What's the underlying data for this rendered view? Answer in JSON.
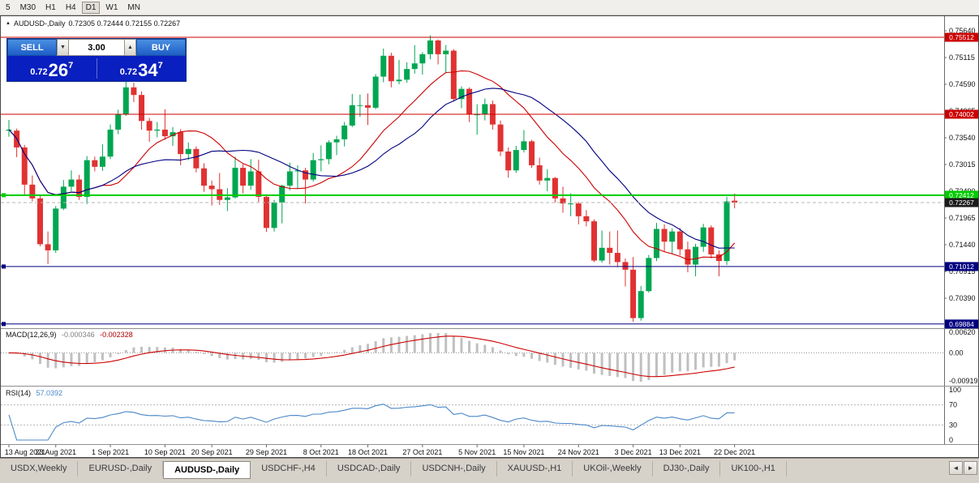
{
  "icons": {
    "chart_arrow": "▲",
    "volume_down": "▼",
    "volume_up": "▲",
    "tab_scroll_left": "◄",
    "tab_scroll_right": "►"
  },
  "toolbar": {
    "periods": [
      {
        "label": "5",
        "active": false
      },
      {
        "label": "M30",
        "active": false
      },
      {
        "label": "H1",
        "active": false
      },
      {
        "label": "H4",
        "active": false
      },
      {
        "label": "D1",
        "active": true
      },
      {
        "label": "W1",
        "active": false
      },
      {
        "label": "MN",
        "active": false
      }
    ]
  },
  "chart": {
    "symbol": "AUDUSD-,Daily",
    "ohlc": "0.72305 0.72444 0.72155 0.72267"
  },
  "trade_panel": {
    "sell_label": "SELL",
    "buy_label": "BUY",
    "volume": "3.00",
    "bid": {
      "prefix": "0.72",
      "big": "26",
      "sup": "7"
    },
    "ask": {
      "prefix": "0.72",
      "big": "34",
      "sup": "7"
    }
  },
  "chart_data": {
    "type": "candlestick",
    "symbol": "AUDUSD-,Daily",
    "title_ohlc": {
      "open": 0.72305,
      "high": 0.72444,
      "low": 0.72155,
      "close": 0.72267
    },
    "up_color": "#00A651",
    "down_color": "#E03232",
    "y_axis_labels": [
      "0.75640",
      "0.75115",
      "0.74590",
      "0.74065",
      "0.73540",
      "0.73015",
      "0.72490",
      "0.71965",
      "0.71440",
      "0.70915",
      "0.70390",
      "0.69865"
    ],
    "x_labels": [
      {
        "i": 0,
        "t": "13 Aug 2021"
      },
      {
        "i": 6,
        "t": "23 Aug 2021"
      },
      {
        "i": 13,
        "t": "1 Sep 2021"
      },
      {
        "i": 20,
        "t": "10 Sep 2021"
      },
      {
        "i": 26,
        "t": "20 Sep 2021"
      },
      {
        "i": 33,
        "t": "29 Sep 2021"
      },
      {
        "i": 40,
        "t": "8 Oct 2021"
      },
      {
        "i": 46,
        "t": "18 Oct 2021"
      },
      {
        "i": 53,
        "t": "27 Oct 2021"
      },
      {
        "i": 60,
        "t": "5 Nov 2021"
      },
      {
        "i": 66,
        "t": "15 Nov 2021"
      },
      {
        "i": 73,
        "t": "24 Nov 2021"
      },
      {
        "i": 80,
        "t": "3 Dec 2021"
      },
      {
        "i": 86,
        "t": "13 Dec 2021"
      },
      {
        "i": 93,
        "t": "22 Dec 2021"
      }
    ],
    "candles": [
      [
        0.7368,
        0.7389,
        0.7356,
        0.737
      ],
      [
        0.7368,
        0.7372,
        0.7316,
        0.7335
      ],
      [
        0.7335,
        0.734,
        0.724,
        0.7262
      ],
      [
        0.7262,
        0.728,
        0.7229,
        0.7235
      ],
      [
        0.7235,
        0.7241,
        0.7141,
        0.7145
      ],
      [
        0.7145,
        0.717,
        0.7106,
        0.7133
      ],
      [
        0.7133,
        0.722,
        0.7128,
        0.7215
      ],
      [
        0.7215,
        0.7271,
        0.7212,
        0.7258
      ],
      [
        0.7258,
        0.729,
        0.7249,
        0.7272
      ],
      [
        0.7272,
        0.7281,
        0.7232,
        0.7238
      ],
      [
        0.7238,
        0.7318,
        0.7224,
        0.731
      ],
      [
        0.731,
        0.7317,
        0.7288,
        0.7297
      ],
      [
        0.7297,
        0.7341,
        0.7289,
        0.7317
      ],
      [
        0.7317,
        0.738,
        0.7312,
        0.737
      ],
      [
        0.737,
        0.7409,
        0.7361,
        0.74
      ],
      [
        0.74,
        0.7478,
        0.7397,
        0.7453
      ],
      [
        0.7453,
        0.7462,
        0.7424,
        0.7438
      ],
      [
        0.7438,
        0.7445,
        0.737,
        0.7387
      ],
      [
        0.7387,
        0.7393,
        0.7346,
        0.7368
      ],
      [
        0.7368,
        0.7385,
        0.7355,
        0.737
      ],
      [
        0.737,
        0.741,
        0.735,
        0.7357
      ],
      [
        0.7357,
        0.7375,
        0.7338,
        0.7365
      ],
      [
        0.7365,
        0.7371,
        0.73,
        0.7322
      ],
      [
        0.7322,
        0.7345,
        0.731,
        0.7332
      ],
      [
        0.7332,
        0.7337,
        0.7286,
        0.7294
      ],
      [
        0.7294,
        0.7304,
        0.7248,
        0.726
      ],
      [
        0.726,
        0.727,
        0.7221,
        0.7253
      ],
      [
        0.7253,
        0.7285,
        0.7222,
        0.7232
      ],
      [
        0.7232,
        0.7255,
        0.721,
        0.7237
      ],
      [
        0.7237,
        0.7317,
        0.7235,
        0.7295
      ],
      [
        0.7295,
        0.7302,
        0.7245,
        0.726
      ],
      [
        0.726,
        0.7312,
        0.7252,
        0.7288
      ],
      [
        0.7288,
        0.7311,
        0.7228,
        0.7238
      ],
      [
        0.7238,
        0.7242,
        0.7169,
        0.7177
      ],
      [
        0.7177,
        0.7232,
        0.717,
        0.7227
      ],
      [
        0.7227,
        0.7262,
        0.7186,
        0.726
      ],
      [
        0.726,
        0.7305,
        0.7251,
        0.7288
      ],
      [
        0.7288,
        0.73,
        0.7255,
        0.729
      ],
      [
        0.729,
        0.7295,
        0.7225,
        0.7272
      ],
      [
        0.7272,
        0.7324,
        0.7268,
        0.731
      ],
      [
        0.731,
        0.7339,
        0.7288,
        0.7312
      ],
      [
        0.7312,
        0.7349,
        0.7302,
        0.7345
      ],
      [
        0.7345,
        0.7358,
        0.732,
        0.7351
      ],
      [
        0.7351,
        0.7385,
        0.7337,
        0.7378
      ],
      [
        0.7378,
        0.744,
        0.7375,
        0.7418
      ],
      [
        0.7418,
        0.7439,
        0.7395,
        0.7418
      ],
      [
        0.7418,
        0.7441,
        0.7379,
        0.7413
      ],
      [
        0.7413,
        0.7479,
        0.741,
        0.7474
      ],
      [
        0.7474,
        0.7529,
        0.7463,
        0.7515
      ],
      [
        0.7515,
        0.7521,
        0.7453,
        0.7465
      ],
      [
        0.7465,
        0.7507,
        0.7459,
        0.7468
      ],
      [
        0.7468,
        0.7502,
        0.7462,
        0.7489
      ],
      [
        0.7489,
        0.7536,
        0.748,
        0.75
      ],
      [
        0.75,
        0.7522,
        0.7478,
        0.7518
      ],
      [
        0.7518,
        0.7555,
        0.7508,
        0.7545
      ],
      [
        0.7545,
        0.7547,
        0.7498,
        0.7518
      ],
      [
        0.7518,
        0.7536,
        0.7482,
        0.7525
      ],
      [
        0.7525,
        0.7528,
        0.7425,
        0.743
      ],
      [
        0.743,
        0.7455,
        0.7412,
        0.745
      ],
      [
        0.745,
        0.7453,
        0.7385,
        0.74
      ],
      [
        0.74,
        0.742,
        0.736,
        0.74
      ],
      [
        0.74,
        0.7431,
        0.7388,
        0.742
      ],
      [
        0.742,
        0.7427,
        0.737,
        0.738
      ],
      [
        0.738,
        0.7388,
        0.7318,
        0.7327
      ],
      [
        0.7327,
        0.7335,
        0.7276,
        0.729
      ],
      [
        0.729,
        0.7338,
        0.7285,
        0.733
      ],
      [
        0.733,
        0.7369,
        0.7325,
        0.7347
      ],
      [
        0.7347,
        0.735,
        0.7295,
        0.73
      ],
      [
        0.73,
        0.7315,
        0.7262,
        0.727
      ],
      [
        0.727,
        0.7292,
        0.7249,
        0.7275
      ],
      [
        0.7275,
        0.7277,
        0.7227,
        0.7235
      ],
      [
        0.7235,
        0.7258,
        0.7207,
        0.7225
      ],
      [
        0.7225,
        0.7245,
        0.72,
        0.7225
      ],
      [
        0.7225,
        0.7228,
        0.7184,
        0.72
      ],
      [
        0.72,
        0.7212,
        0.718,
        0.719
      ],
      [
        0.719,
        0.7194,
        0.711,
        0.7113
      ],
      [
        0.7113,
        0.7172,
        0.7109,
        0.7138
      ],
      [
        0.7138,
        0.717,
        0.7105,
        0.7128
      ],
      [
        0.7128,
        0.7172,
        0.71,
        0.711
      ],
      [
        0.711,
        0.7117,
        0.7062,
        0.7095
      ],
      [
        0.7095,
        0.712,
        0.6993,
        0.7
      ],
      [
        0.7,
        0.7063,
        0.6995,
        0.7053
      ],
      [
        0.7053,
        0.7124,
        0.705,
        0.7118
      ],
      [
        0.7118,
        0.7187,
        0.7112,
        0.7175
      ],
      [
        0.7175,
        0.7184,
        0.713,
        0.715
      ],
      [
        0.715,
        0.7176,
        0.7127,
        0.717
      ],
      [
        0.717,
        0.7177,
        0.7123,
        0.7135
      ],
      [
        0.7135,
        0.715,
        0.709,
        0.7105
      ],
      [
        0.7105,
        0.7146,
        0.7082,
        0.714
      ],
      [
        0.714,
        0.7185,
        0.713,
        0.7178
      ],
      [
        0.7178,
        0.7182,
        0.7117,
        0.7125
      ],
      [
        0.7125,
        0.7133,
        0.7082,
        0.7112
      ],
      [
        0.7112,
        0.7238,
        0.7104,
        0.7229
      ],
      [
        0.72305,
        0.72444,
        0.72155,
        0.72267
      ]
    ],
    "moving_averages": [
      {
        "name": "fast-ma",
        "period": 13,
        "color": "#CC0000"
      },
      {
        "name": "slow-ma",
        "period": 21,
        "color": "#000080"
      }
    ],
    "hlines": [
      {
        "price": 0.75512,
        "tag": "0.75512",
        "color": "#CC0000",
        "width": 1,
        "marker": false
      },
      {
        "price": 0.74002,
        "tag": "0.74002",
        "color": "#CC0000",
        "width": 1,
        "marker": false
      },
      {
        "price": 0.72412,
        "tag": "0.72412",
        "color": "#00CC00",
        "width": 2,
        "marker": true
      },
      {
        "price": 0.71012,
        "tag": "0.71012",
        "color": "#000080",
        "width": 1,
        "marker": true
      },
      {
        "price": 0.69884,
        "tag": "0.69884",
        "color": "#000080",
        "width": 1,
        "marker": true
      }
    ],
    "current_price": {
      "value": 0.72267,
      "tag": "0.72267",
      "tag_bg": "#1a1a1a"
    },
    "macd": {
      "label": "MACD(12,26,9)",
      "value_main": "-0.000346",
      "value_signal": "-0.002328",
      "params": [
        12,
        26,
        9
      ],
      "axis_labels": [
        "0.00620",
        "0.00",
        "-0.00919"
      ],
      "hist_color": "#C0C0C0",
      "signal_color": "#CC0000"
    },
    "rsi": {
      "label": "RSI(14)",
      "value": "57.0392",
      "period": 14,
      "levels": [
        100,
        70,
        30,
        0
      ],
      "axis_labels": [
        "100",
        "70",
        "30",
        "0"
      ],
      "line_color": "#4A87C8"
    }
  },
  "tabs": {
    "items": [
      {
        "label": "USDX,Weekly",
        "active": false
      },
      {
        "label": "EURUSD-,Daily",
        "active": false
      },
      {
        "label": "AUDUSD-,Daily",
        "active": true
      },
      {
        "label": "USDCHF-,H4",
        "active": false
      },
      {
        "label": "USDCAD-,Daily",
        "active": false
      },
      {
        "label": "USDCNH-,Daily",
        "active": false
      },
      {
        "label": "XAUUSD-,H1",
        "active": false
      },
      {
        "label": "UKOil-,Weekly",
        "active": false
      },
      {
        "label": "DJ30-,Daily",
        "active": false
      },
      {
        "label": "UK100-,H1",
        "active": false
      }
    ]
  }
}
